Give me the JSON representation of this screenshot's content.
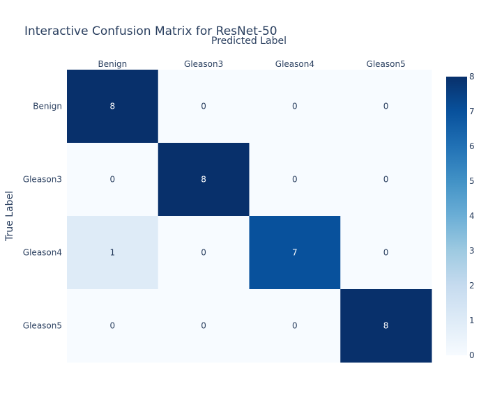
{
  "chart_data": {
    "type": "heatmap",
    "title": "Interactive Confusion Matrix for ResNet-50",
    "xlabel": "Predicted Label",
    "ylabel": "True Label",
    "x_categories": [
      "Benign",
      "Gleason3",
      "Gleason4",
      "Gleason5"
    ],
    "y_categories": [
      "Benign",
      "Gleason3",
      "Gleason4",
      "Gleason5"
    ],
    "values": [
      [
        8,
        0,
        0,
        0
      ],
      [
        0,
        8,
        0,
        0
      ],
      [
        1,
        0,
        7,
        0
      ],
      [
        0,
        0,
        0,
        8
      ]
    ],
    "zlim": [
      0,
      8
    ],
    "colorbar_ticks": [
      "0",
      "1",
      "2",
      "3",
      "4",
      "5",
      "6",
      "7",
      "8"
    ],
    "colorscale": "Blues",
    "x_axis_position": "top"
  }
}
